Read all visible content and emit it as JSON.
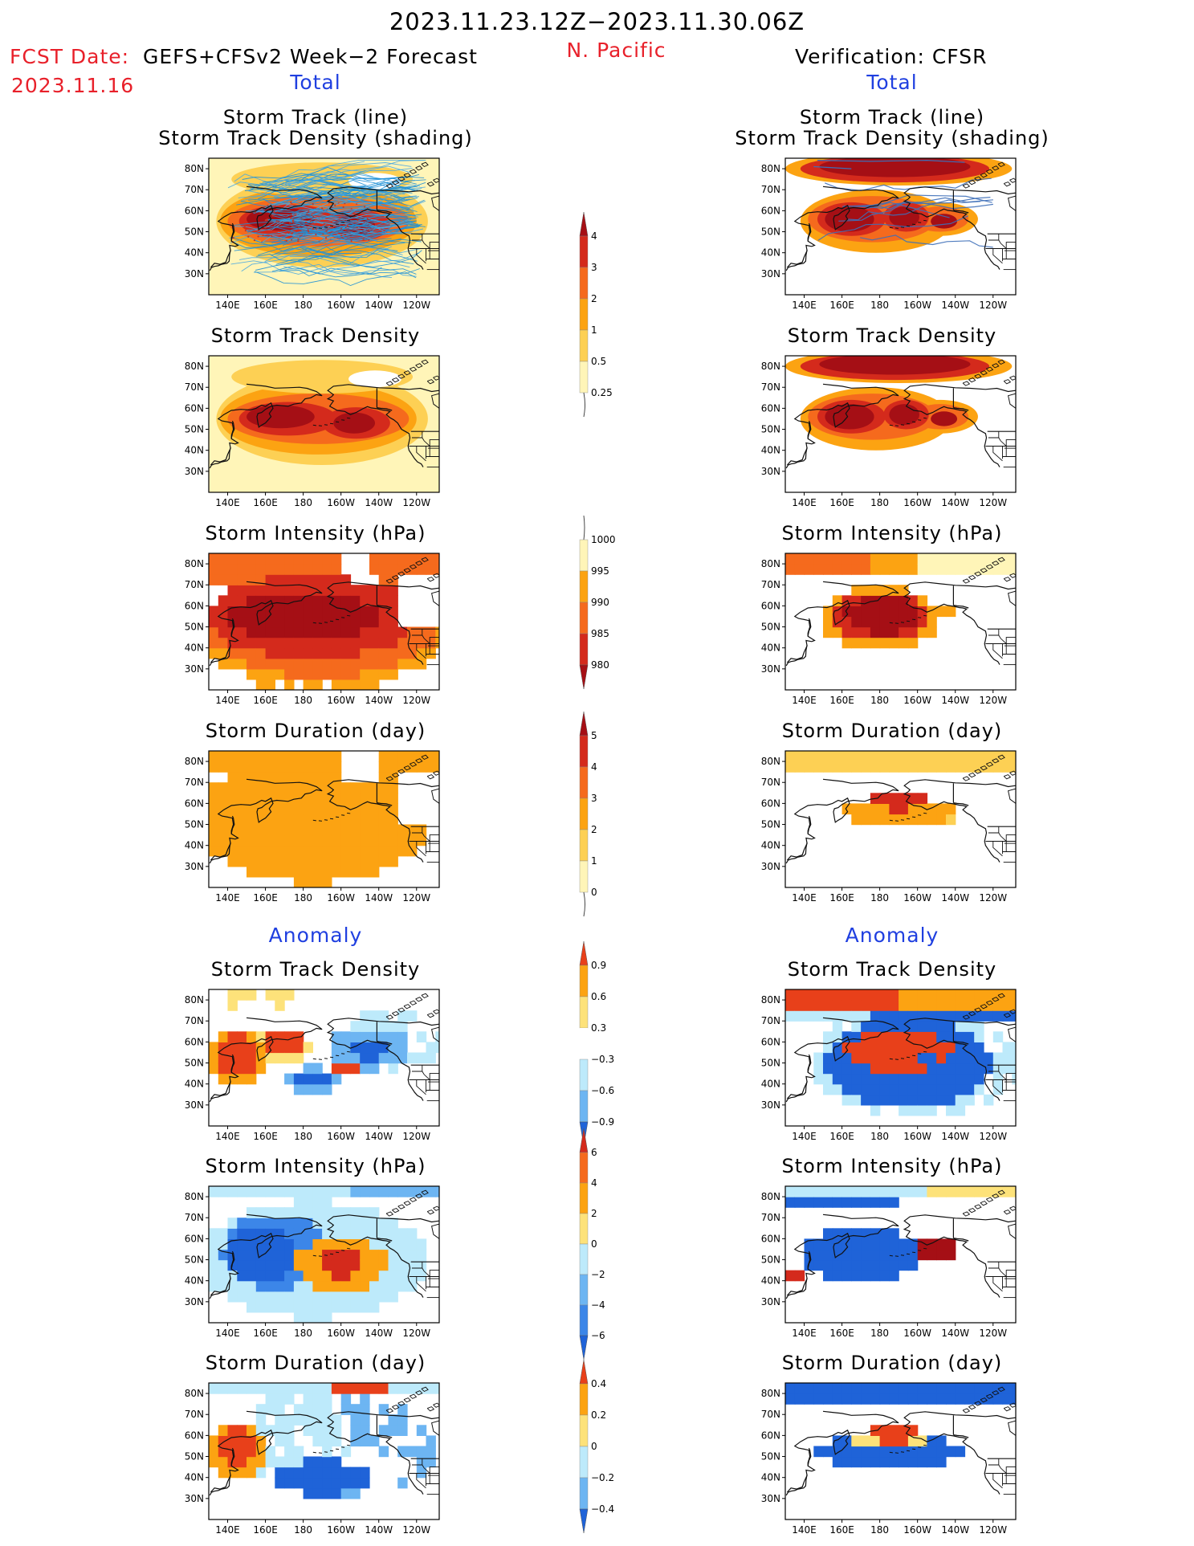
{
  "header": {
    "title": "2023.11.23.12Z−2023.11.30.06Z",
    "region": "N. Pacific",
    "fcst_label": "FCST Date:",
    "fcst_model": "GEFS+CFSv2 Week−2 Forecast",
    "fcst_date": "2023.11.16",
    "verification": "Verification: CFSR"
  },
  "sections": {
    "total_left": "Total",
    "total_right": "Total",
    "anomaly_left": "Anomaly",
    "anomaly_right": "Anomaly"
  },
  "panel_titles": {
    "track_line": "Storm Track (line)",
    "track_shading": "Storm Track Density (shading)",
    "density": "Storm Track Density",
    "intensity": "Storm Intensity (hPa)",
    "duration": "Storm Duration (day)"
  },
  "map_axes": {
    "lat_labels": [
      "80N",
      "70N",
      "60N",
      "50N",
      "40N",
      "30N"
    ],
    "lon_labels": [
      "140E",
      "160E",
      "180",
      "160W",
      "140W",
      "120W"
    ]
  },
  "colorbars": {
    "density_total": {
      "labels": [
        "4",
        "3",
        "2",
        "1",
        "0.5",
        "0.25"
      ],
      "colors": [
        "#a50f15",
        "#d42a1c",
        "#f56a1d",
        "#fca312",
        "#fdd054",
        "#fff5b8"
      ]
    },
    "intensity_total": {
      "labels": [
        "1000",
        "995",
        "990",
        "985",
        "980"
      ],
      "colors": [
        "#fff5b8",
        "#fca312",
        "#f56a1d",
        "#d42a1c",
        "#a50f15"
      ]
    },
    "duration_total": {
      "labels": [
        "5",
        "4",
        "3",
        "2",
        "1",
        "0"
      ],
      "colors": [
        "#a50f15",
        "#d42a1c",
        "#f56a1d",
        "#fca312",
        "#fdd054",
        "#fff5b8"
      ]
    },
    "density_anom": {
      "labels": [
        "0.9",
        "0.6",
        "0.3",
        "−0.3",
        "−0.6",
        "−0.9"
      ],
      "colors": [
        "#e8401a",
        "#fca312",
        "#fde27a",
        "#ffffff",
        "#bdeafb",
        "#6db5f2",
        "#1f63d8"
      ]
    },
    "intensity_anom": {
      "labels": [
        "6",
        "4",
        "2",
        "0",
        "−2",
        "−4",
        "−6"
      ],
      "colors": [
        "#d42a1c",
        "#f56a1d",
        "#fca312",
        "#fde27a",
        "#bdeafb",
        "#6db5f2",
        "#3c86e8",
        "#1f63d8"
      ]
    },
    "duration_anom": {
      "labels": [
        "0.4",
        "0.2",
        "0",
        "−0.2",
        "−0.4"
      ],
      "colors": [
        "#e8401a",
        "#fca312",
        "#fde27a",
        "#bdeafb",
        "#6db5f2",
        "#1f63d8"
      ]
    }
  },
  "chart_data": [
    {
      "type": "heatmap",
      "title": "Storm Track (line) Storm Track Density (shading)",
      "source": "GEFS+CFSv2",
      "view": "Total",
      "region": [
        [
          20,
          80
        ],
        "140E-110W"
      ],
      "peak_density": 4,
      "peak_center": [
        "55N",
        "165E-160W"
      ],
      "has_track_lines": true
    },
    {
      "type": "heatmap",
      "title": "Storm Track (line) Storm Track Density (shading)",
      "source": "CFSR",
      "view": "Total",
      "peak_density": 4,
      "peak_center": [
        "55N",
        "150E-150W"
      ],
      "has_track_lines": true
    },
    {
      "type": "heatmap",
      "title": "Storm Track Density",
      "source": "GEFS+CFSv2",
      "view": "Total",
      "levels": [
        0.25,
        0.5,
        1,
        2,
        3,
        4
      ]
    },
    {
      "type": "heatmap",
      "title": "Storm Track Density",
      "source": "CFSR",
      "view": "Total",
      "levels": [
        0.25,
        0.5,
        1,
        2,
        3,
        4
      ]
    },
    {
      "type": "heatmap",
      "title": "Storm Intensity (hPa)",
      "source": "GEFS+CFSv2",
      "view": "Total",
      "levels": [
        980,
        985,
        990,
        995,
        1000
      ]
    },
    {
      "type": "heatmap",
      "title": "Storm Intensity (hPa)",
      "source": "CFSR",
      "view": "Total",
      "levels": [
        980,
        985,
        990,
        995,
        1000
      ]
    },
    {
      "type": "heatmap",
      "title": "Storm Duration (day)",
      "source": "GEFS+CFSv2",
      "view": "Total",
      "levels": [
        0,
        1,
        2,
        3,
        4,
        5
      ]
    },
    {
      "type": "heatmap",
      "title": "Storm Duration (day)",
      "source": "CFSR",
      "view": "Total",
      "levels": [
        0,
        1,
        2,
        3,
        4,
        5
      ]
    },
    {
      "type": "heatmap",
      "title": "Storm Track Density",
      "source": "GEFS+CFSv2",
      "view": "Anomaly",
      "levels": [
        -0.9,
        -0.6,
        -0.3,
        0.3,
        0.6,
        0.9
      ]
    },
    {
      "type": "heatmap",
      "title": "Storm Track Density",
      "source": "CFSR",
      "view": "Anomaly",
      "levels": [
        -0.9,
        -0.6,
        -0.3,
        0.3,
        0.6,
        0.9
      ]
    },
    {
      "type": "heatmap",
      "title": "Storm Intensity (hPa)",
      "source": "GEFS+CFSv2",
      "view": "Anomaly",
      "levels": [
        -6,
        -4,
        -2,
        0,
        2,
        4,
        6
      ]
    },
    {
      "type": "heatmap",
      "title": "Storm Intensity (hPa)",
      "source": "CFSR",
      "view": "Anomaly",
      "levels": [
        -6,
        -4,
        -2,
        0,
        2,
        4,
        6
      ]
    },
    {
      "type": "heatmap",
      "title": "Storm Duration (day)",
      "source": "GEFS+CFSv2",
      "view": "Anomaly",
      "levels": [
        -0.4,
        -0.2,
        0,
        0.2,
        0.4
      ]
    },
    {
      "type": "heatmap",
      "title": "Storm Duration (day)",
      "source": "CFSR",
      "view": "Anomaly",
      "levels": [
        -0.4,
        -0.2,
        0,
        0.2,
        0.4
      ]
    }
  ]
}
